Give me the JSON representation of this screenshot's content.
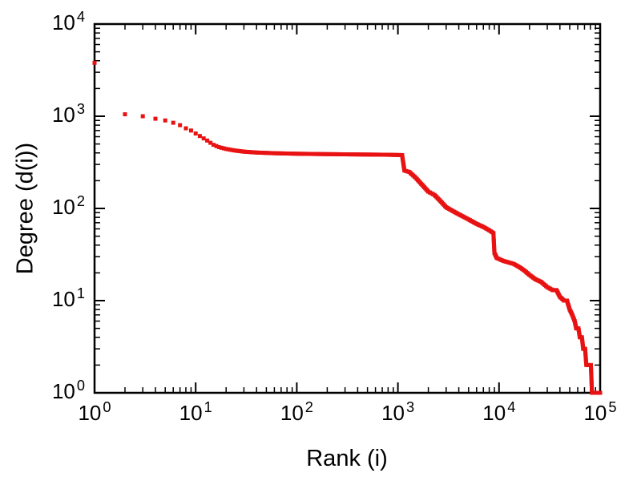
{
  "figure": {
    "background": "#ffffff",
    "axis_color": "#000000"
  },
  "chart_data": {
    "type": "scatter",
    "title": "",
    "xlabel": "Rank (i)",
    "ylabel": "Degree (d(i))",
    "x_scale": "log",
    "y_scale": "log",
    "xlim": [
      1,
      100000
    ],
    "ylim": [
      1,
      10000
    ],
    "grid": false,
    "legend": "none",
    "tick_label_base": "10",
    "x_tick_exponents": [
      0,
      1,
      2,
      3,
      4,
      5
    ],
    "y_tick_exponents": [
      0,
      1,
      2,
      3,
      4
    ],
    "marker": {
      "shape": "square",
      "size": 5,
      "color": "#e81212"
    },
    "series": [
      {
        "name": "degree-vs-rank",
        "points": [
          [
            1,
            3800
          ],
          [
            2,
            1050
          ],
          [
            3,
            1000
          ],
          [
            4,
            940
          ],
          [
            5,
            900
          ],
          [
            6,
            850
          ],
          [
            7,
            800
          ],
          [
            8,
            740
          ],
          [
            9,
            700
          ],
          [
            10,
            650
          ],
          [
            11,
            610
          ],
          [
            12,
            575
          ],
          [
            13,
            545
          ],
          [
            14,
            515
          ],
          [
            15,
            490
          ],
          [
            17,
            462
          ],
          [
            20,
            442
          ],
          [
            24,
            426
          ],
          [
            30,
            413
          ],
          [
            40,
            404
          ],
          [
            60,
            397
          ],
          [
            100,
            392
          ],
          [
            200,
            388
          ],
          [
            400,
            385
          ],
          [
            800,
            382
          ],
          [
            1100,
            379
          ],
          [
            1130,
            310
          ],
          [
            1160,
            258
          ],
          [
            1300,
            248
          ],
          [
            1500,
            215
          ],
          [
            1700,
            185
          ],
          [
            2000,
            152
          ],
          [
            2300,
            140
          ],
          [
            2600,
            122
          ],
          [
            3000,
            103
          ],
          [
            3600,
            92
          ],
          [
            4200,
            84
          ],
          [
            5000,
            76
          ],
          [
            6000,
            68
          ],
          [
            7000,
            63
          ],
          [
            8000,
            58
          ],
          [
            8800,
            54
          ],
          [
            9000,
            33
          ],
          [
            9500,
            29
          ],
          [
            11000,
            27
          ],
          [
            14000,
            25
          ],
          [
            16000,
            23
          ],
          [
            18000,
            21
          ],
          [
            20000,
            19
          ],
          [
            23000,
            17
          ],
          [
            26000,
            16
          ],
          [
            30000,
            14
          ],
          [
            34000,
            13
          ],
          [
            37000,
            13
          ],
          [
            40000,
            11
          ],
          [
            44000,
            10
          ],
          [
            47000,
            10
          ],
          [
            50000,
            8
          ],
          [
            53000,
            7
          ],
          [
            56000,
            6
          ],
          [
            58000,
            5
          ],
          [
            61000,
            5
          ],
          [
            63000,
            4
          ],
          [
            66000,
            4
          ],
          [
            68000,
            3
          ],
          [
            71000,
            3
          ],
          [
            73000,
            2
          ],
          [
            81000,
            2
          ],
          [
            83000,
            1
          ],
          [
            100000,
            1
          ]
        ]
      }
    ]
  }
}
